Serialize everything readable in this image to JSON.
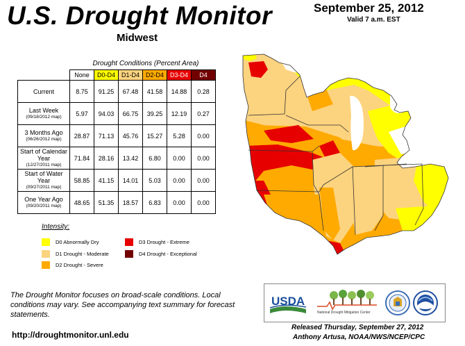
{
  "header": {
    "title": "U.S. Drought Monitor",
    "region": "Midwest",
    "date": "September 25, 2012",
    "valid": "Valid 7 a.m. EST"
  },
  "table": {
    "caption": "Drought Conditions (Percent Area)",
    "columns": [
      {
        "label": "None",
        "color": "#ffffff"
      },
      {
        "label": "D0-D4",
        "color": "#ffff00"
      },
      {
        "label": "D1-D4",
        "color": "#fcd37f"
      },
      {
        "label": "D2-D4",
        "color": "#ffaa00"
      },
      {
        "label": "D3-D4",
        "color": "#e60000"
      },
      {
        "label": "D4",
        "color": "#730000"
      }
    ],
    "rows": [
      {
        "label": "Current",
        "sub": "",
        "values": [
          "8.75",
          "91.25",
          "67.48",
          "41.58",
          "14.88",
          "0.28"
        ]
      },
      {
        "label": "Last Week",
        "sub": "(09/18/2012 map)",
        "values": [
          "5.97",
          "94.03",
          "66.75",
          "39.25",
          "12.19",
          "0.27"
        ]
      },
      {
        "label": "3 Months Ago",
        "sub": "(06/26/2012 map)",
        "values": [
          "28.87",
          "71.13",
          "45.76",
          "15.27",
          "5.28",
          "0.00"
        ]
      },
      {
        "label": "Start of Calendar Year",
        "sub": "(12/27/2011 map)",
        "values": [
          "71.84",
          "28.16",
          "13.42",
          "6.80",
          "0.00",
          "0.00"
        ]
      },
      {
        "label": "Start of Water Year",
        "sub": "(09/27/2011 map)",
        "values": [
          "58.85",
          "41.15",
          "14.01",
          "5.03",
          "0.00",
          "0.00"
        ]
      },
      {
        "label": "One Year Ago",
        "sub": "(09/20/2011 map)",
        "values": [
          "48.65",
          "51.35",
          "18.57",
          "6.83",
          "0.00",
          "0.00"
        ]
      }
    ]
  },
  "legend": {
    "title": "Intensity:",
    "items": [
      {
        "label": "D0 Abnormally Dry",
        "color": "#ffff00"
      },
      {
        "label": "D1 Drought - Moderate",
        "color": "#fcd37f"
      },
      {
        "label": "D2 Drought - Severe",
        "color": "#ffaa00"
      },
      {
        "label": "D3 Drought - Extreme",
        "color": "#e60000"
      },
      {
        "label": "D4 Drought - Exceptional",
        "color": "#730000"
      }
    ]
  },
  "footer": {
    "note": "The Drought Monitor focuses on broad-scale conditions. Local conditions may vary. See accompanying text summary for forecast statements.",
    "url": "http://droughtmonitor.unl.edu",
    "released": "Released Thursday, September 27, 2012",
    "author": "Anthony Artusa, NOAA/NWS/NCEP/CPC"
  },
  "logos": {
    "usda": "USDA",
    "ndmc": "National Drought Mitigation Center"
  }
}
